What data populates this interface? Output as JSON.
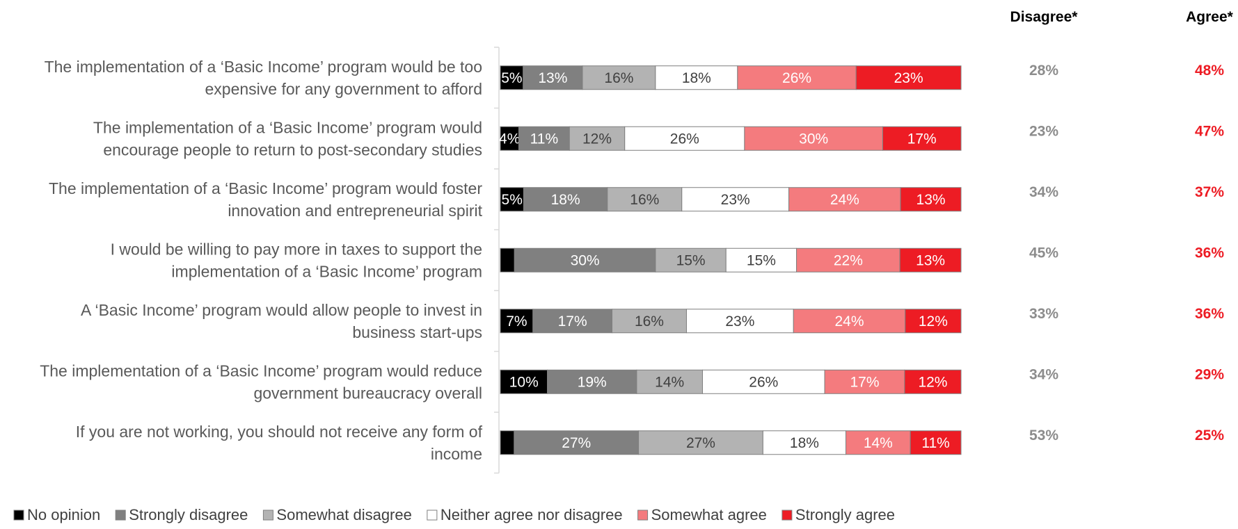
{
  "chart_data": {
    "type": "bar",
    "orientation": "horizontal",
    "stacked": true,
    "categories": [
      [
        "The implementation of a ‘Basic Income’ program would be too",
        "expensive for any government to afford"
      ],
      [
        "The implementation of a ‘Basic Income’ program would",
        "encourage people to return to post-secondary studies"
      ],
      [
        "The implementation of a ‘Basic Income’ program would foster",
        "innovation and entrepreneurial spirit"
      ],
      [
        "I would be willing to pay more in taxes to support the",
        "implementation of a ‘Basic Income’ program"
      ],
      [
        "A ‘Basic Income’ program would allow people to invest in",
        "business start-ups"
      ],
      [
        "The implementation of a ‘Basic Income’ program would reduce",
        "government bureaucracy overall"
      ],
      [
        "If you are not working, you should not receive any form of",
        "income"
      ]
    ],
    "series": [
      {
        "name": "No opinion",
        "color": "#000000",
        "text_color": "#ffffff",
        "values": [
          5,
          4,
          5,
          3,
          7,
          10,
          3
        ],
        "labels": [
          "5%",
          "4%",
          "5%",
          "",
          "7%",
          "10%",
          ""
        ]
      },
      {
        "name": "Strongly disagree",
        "color": "#808080",
        "text_color": "#ffffff",
        "values": [
          13,
          11,
          18,
          30,
          17,
          19,
          27
        ],
        "labels": [
          "13%",
          "11%",
          "18%",
          "30%",
          "17%",
          "19%",
          "27%"
        ]
      },
      {
        "name": "Somewhat disagree",
        "color": "#b3b3b3",
        "text_color": "#404040",
        "values": [
          16,
          12,
          16,
          15,
          16,
          14,
          27
        ],
        "labels": [
          "16%",
          "12%",
          "16%",
          "15%",
          "16%",
          "14%",
          "27%"
        ]
      },
      {
        "name": "Neither agree nor disagree",
        "color": "#ffffff",
        "text_color": "#404040",
        "values": [
          18,
          26,
          23,
          15,
          23,
          26,
          18
        ],
        "labels": [
          "18%",
          "26%",
          "23%",
          "15%",
          "23%",
          "26%",
          "18%"
        ]
      },
      {
        "name": "Somewhat agree",
        "color": "#f47b7e",
        "text_color": "#ffffff",
        "values": [
          26,
          30,
          24,
          22,
          24,
          17,
          14
        ],
        "labels": [
          "26%",
          "30%",
          "24%",
          "22%",
          "24%",
          "17%",
          "14%"
        ]
      },
      {
        "name": "Strongly agree",
        "color": "#ed1c24",
        "text_color": "#ffffff",
        "values": [
          23,
          17,
          13,
          13,
          12,
          12,
          11
        ],
        "labels": [
          "23%",
          "17%",
          "13%",
          "13%",
          "12%",
          "12%",
          "11%"
        ]
      }
    ],
    "xlim": [
      0,
      100
    ],
    "summary_columns": [
      {
        "title": "Disagree*",
        "color": "#8c8c8c",
        "values": [
          "28%",
          "23%",
          "34%",
          "45%",
          "33%",
          "34%",
          "53%"
        ]
      },
      {
        "title": "Agree*",
        "color": "#ed1c24",
        "values": [
          "48%",
          "47%",
          "37%",
          "36%",
          "36%",
          "29%",
          "25%"
        ]
      }
    ],
    "legend_position": "bottom-left",
    "grid": false
  }
}
